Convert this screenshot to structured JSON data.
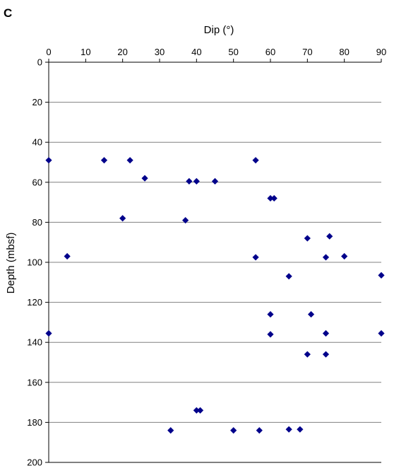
{
  "chart_data": {
    "type": "scatter",
    "panel_label": "C",
    "xlabel": "Dip (°)",
    "ylabel": "Depth (mbsf)",
    "xlim": [
      0,
      90
    ],
    "ylim": [
      0,
      200
    ],
    "y_inverted": true,
    "x_axis_position": "top",
    "x_ticks": [
      0,
      10,
      20,
      30,
      40,
      50,
      60,
      70,
      80,
      90
    ],
    "y_ticks": [
      0,
      20,
      40,
      60,
      80,
      100,
      120,
      140,
      160,
      180,
      200
    ],
    "grid": "horizontal",
    "marker": "diamond",
    "colors": {
      "marker": "#00008B",
      "gridline": "#808080",
      "axis": "#000000"
    },
    "points": [
      {
        "x": 0,
        "y": 49
      },
      {
        "x": 15,
        "y": 49
      },
      {
        "x": 22,
        "y": 49
      },
      {
        "x": 56,
        "y": 49
      },
      {
        "x": 26,
        "y": 58
      },
      {
        "x": 38,
        "y": 59.5
      },
      {
        "x": 40,
        "y": 59.5
      },
      {
        "x": 45,
        "y": 59.5
      },
      {
        "x": 60,
        "y": 68
      },
      {
        "x": 61,
        "y": 68
      },
      {
        "x": 20,
        "y": 78
      },
      {
        "x": 37,
        "y": 79
      },
      {
        "x": 76,
        "y": 87
      },
      {
        "x": 70,
        "y": 88
      },
      {
        "x": 5,
        "y": 97
      },
      {
        "x": 56,
        "y": 97.5
      },
      {
        "x": 75,
        "y": 97.5
      },
      {
        "x": 80,
        "y": 97
      },
      {
        "x": 65,
        "y": 107
      },
      {
        "x": 90,
        "y": 106.5
      },
      {
        "x": 60,
        "y": 126
      },
      {
        "x": 71,
        "y": 126
      },
      {
        "x": 0,
        "y": 135.5
      },
      {
        "x": 60,
        "y": 136
      },
      {
        "x": 75,
        "y": 135.5
      },
      {
        "x": 90,
        "y": 135.5
      },
      {
        "x": 70,
        "y": 146
      },
      {
        "x": 75,
        "y": 146
      },
      {
        "x": 40,
        "y": 174
      },
      {
        "x": 41,
        "y": 174
      },
      {
        "x": 33,
        "y": 184
      },
      {
        "x": 50,
        "y": 184
      },
      {
        "x": 57,
        "y": 184
      },
      {
        "x": 65,
        "y": 183.5
      },
      {
        "x": 68,
        "y": 183.5
      }
    ]
  }
}
